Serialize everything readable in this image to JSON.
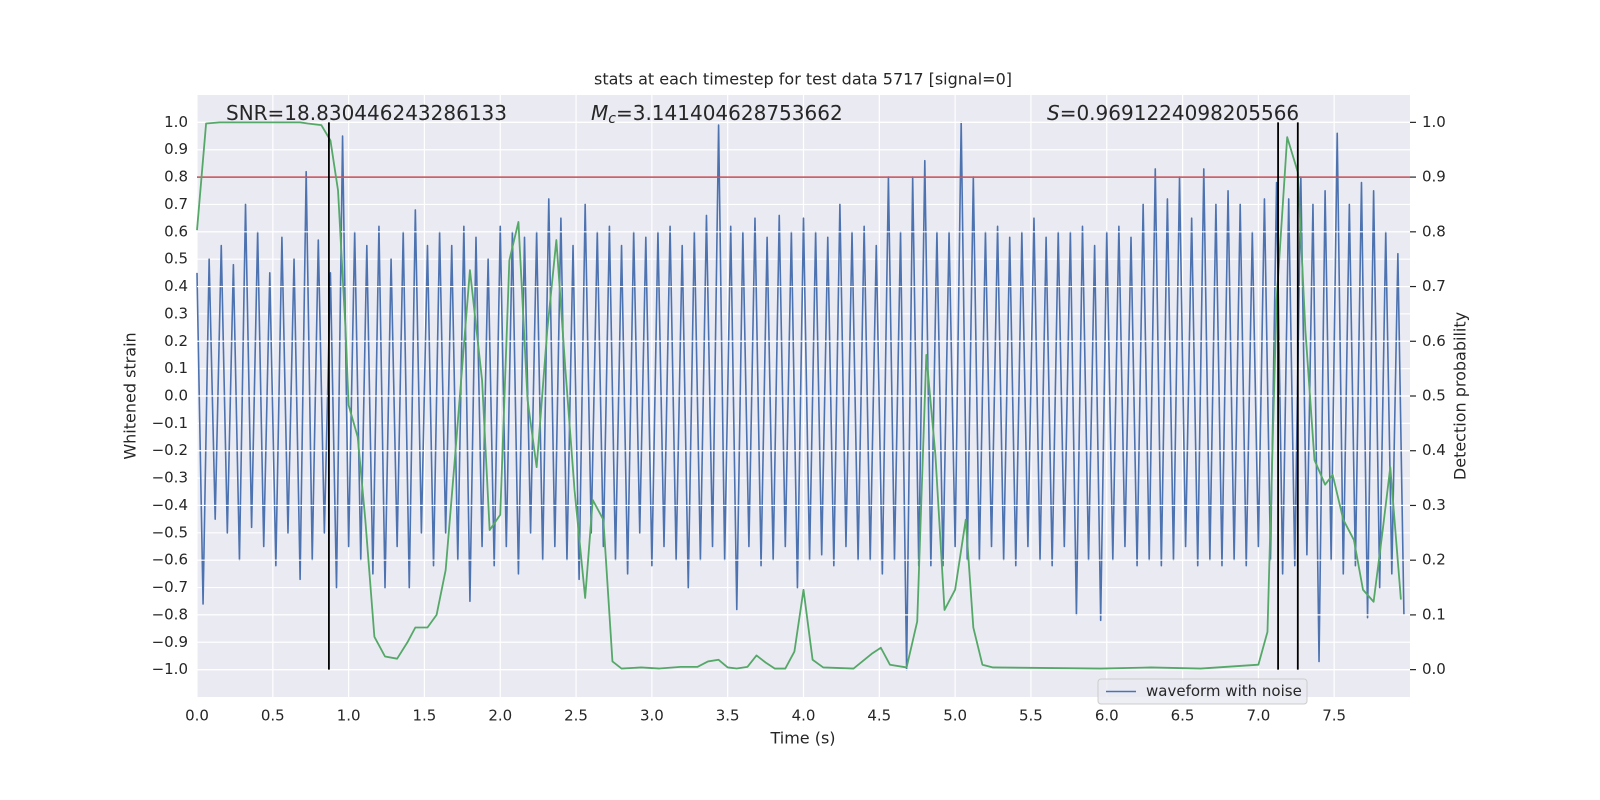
{
  "chart_data": {
    "type": "line",
    "title": "stats at each timestep for test data 5717 [signal=0]",
    "x_label": "Time (s)",
    "y_label": "Whitened strain",
    "y2_label": "Detection probability",
    "xlim": [
      0,
      8
    ],
    "ylim": [
      -1.1,
      1.1
    ],
    "y2lim": [
      -0.05,
      1.05
    ],
    "xticks": [
      {
        "value": 0,
        "label": "0.0"
      },
      0.5,
      {
        "value": 1,
        "label": "1.0"
      },
      1.5,
      {
        "value": 2,
        "label": "2.0"
      },
      2.5,
      {
        "value": 3,
        "label": "3.0"
      },
      3.5,
      {
        "value": 4,
        "label": "4.0"
      },
      4.5,
      {
        "value": 5,
        "label": "5.0"
      },
      5.5,
      {
        "value": 6,
        "label": "6.0"
      },
      6.5,
      {
        "value": 7,
        "label": "7.0"
      },
      7.5
    ],
    "yticks": [
      {
        "value": -1,
        "label": "−1.0"
      },
      {
        "value": -0.9,
        "label": "−0.9"
      },
      {
        "value": -0.8,
        "label": "−0.8"
      },
      {
        "value": -0.7,
        "label": "−0.7"
      },
      {
        "value": -0.6,
        "label": "−0.6"
      },
      {
        "value": -0.5,
        "label": "−0.5"
      },
      {
        "value": -0.4,
        "label": "−0.4"
      },
      {
        "value": -0.3,
        "label": "−0.3"
      },
      {
        "value": -0.2,
        "label": "−0.2"
      },
      {
        "value": -0.1,
        "label": "−0.1"
      },
      {
        "value": 0,
        "label": "0.0"
      },
      0.1,
      0.2,
      0.3,
      0.4,
      0.5,
      0.6,
      0.7,
      0.8,
      0.9,
      {
        "value": 1,
        "label": "1.0"
      }
    ],
    "y2ticks": [
      {
        "value": 0,
        "label": "0.0"
      },
      0.1,
      0.2,
      0.3,
      0.4,
      0.5,
      0.6,
      0.7,
      0.8,
      0.9,
      {
        "value": 1,
        "label": "1.0"
      }
    ],
    "grid": true,
    "legend": "lower right",
    "annotations": [
      {
        "text": "SNR=18.830446243286133"
      },
      {
        "symbol": "M",
        "subscript": "c",
        "text": "=3.141404628753662"
      },
      {
        "symbol": "S",
        "text": "=0.9691224098205566"
      }
    ],
    "hlines": [
      {
        "value": 0.9,
        "axis": "y2",
        "color": "#c44e52"
      }
    ],
    "vlines": [
      {
        "x": 0.87,
        "ymin": -1,
        "ymax": 1,
        "color": "#000000"
      },
      {
        "x": 7.13,
        "ymin": -1,
        "ymax": 1,
        "color": "#000000"
      },
      {
        "x": 7.26,
        "ymin": -1,
        "ymax": 1,
        "color": "#000000"
      }
    ],
    "series": [
      {
        "name": "waveform with noise",
        "color": "#4c72b0",
        "x": [
          0,
          0.04,
          0.08,
          0.12,
          0.16,
          0.2,
          0.24,
          0.28,
          0.32,
          0.36,
          0.4,
          0.44,
          0.48,
          0.52,
          0.56,
          0.6,
          0.64,
          0.68,
          0.72,
          0.76,
          0.8,
          0.84,
          0.88,
          0.92,
          0.96,
          1,
          1.04,
          1.08,
          1.12,
          1.16,
          1.2,
          1.24,
          1.28,
          1.32,
          1.36,
          1.4,
          1.44,
          1.48,
          1.52,
          1.56,
          1.6,
          1.64,
          1.68,
          1.72,
          1.76,
          1.8,
          1.84,
          1.88,
          1.92,
          1.96,
          2,
          2.04,
          2.08,
          2.12,
          2.16,
          2.2,
          2.24,
          2.28,
          2.32,
          2.36,
          2.4,
          2.44,
          2.48,
          2.52,
          2.56,
          2.6,
          2.64,
          2.68,
          2.72,
          2.76,
          2.8,
          2.84,
          2.88,
          2.92,
          2.96,
          3,
          3.04,
          3.08,
          3.12,
          3.16,
          3.2,
          3.24,
          3.28,
          3.32,
          3.36,
          3.4,
          3.44,
          3.48,
          3.52,
          3.56,
          3.6,
          3.64,
          3.68,
          3.72,
          3.76,
          3.8,
          3.84,
          3.88,
          3.92,
          3.96,
          4,
          4.04,
          4.08,
          4.12,
          4.16,
          4.2,
          4.24,
          4.28,
          4.32,
          4.36,
          4.4,
          4.44,
          4.48,
          4.52,
          4.56,
          4.6,
          4.64,
          4.68,
          4.72,
          4.76,
          4.8,
          4.84,
          4.88,
          4.92,
          4.96,
          5,
          5.04,
          5.08,
          5.12,
          5.16,
          5.2,
          5.24,
          5.28,
          5.32,
          5.36,
          5.4,
          5.44,
          5.48,
          5.52,
          5.56,
          5.6,
          5.64,
          5.68,
          5.72,
          5.76,
          5.8,
          5.84,
          5.88,
          5.92,
          5.96,
          6,
          6.04,
          6.08,
          6.12,
          6.16,
          6.2,
          6.24,
          6.28,
          6.32,
          6.36,
          6.4,
          6.44,
          6.48,
          6.52,
          6.56,
          6.6,
          6.64,
          6.68,
          6.72,
          6.76,
          6.8,
          6.84,
          6.88,
          6.92,
          6.96,
          7,
          7.04,
          7.08,
          7.12,
          7.16,
          7.2,
          7.24,
          7.28,
          7.32,
          7.36,
          7.4,
          7.44,
          7.48,
          7.52,
          7.56,
          7.6,
          7.64,
          7.68,
          7.72,
          7.76,
          7.8,
          7.84,
          7.88,
          7.92,
          7.96
        ],
        "values": [
          0.45,
          -0.76,
          0.5,
          -0.45,
          0.55,
          -0.5,
          0.48,
          -0.6,
          0.7,
          -0.48,
          0.6,
          -0.55,
          0.45,
          -0.62,
          0.58,
          -0.5,
          0.5,
          -0.67,
          0.82,
          -0.6,
          0.57,
          -0.5,
          0.45,
          -0.7,
          0.95,
          -0.55,
          0.6,
          -0.6,
          0.55,
          -0.65,
          0.62,
          -0.7,
          0.5,
          -0.55,
          0.6,
          -0.7,
          0.68,
          -0.5,
          0.55,
          -0.62,
          0.6,
          -0.5,
          0.55,
          -0.6,
          0.62,
          -0.75,
          0.58,
          -0.55,
          0.5,
          -0.62,
          0.62,
          -0.55,
          0.6,
          -0.65,
          0.58,
          -0.5,
          0.6,
          -0.6,
          0.72,
          -0.55,
          0.65,
          -0.6,
          0.55,
          -0.67,
          0.7,
          -0.5,
          0.6,
          -0.55,
          0.62,
          -0.6,
          0.55,
          -0.65,
          0.6,
          -0.5,
          0.58,
          -0.62,
          0.6,
          -0.55,
          0.62,
          -0.6,
          0.55,
          -0.7,
          0.6,
          -0.6,
          0.66,
          -0.55,
          0.99,
          -0.6,
          0.62,
          -0.78,
          0.6,
          -0.55,
          0.65,
          -0.62,
          0.58,
          -0.6,
          0.66,
          -0.55,
          0.6,
          -0.7,
          0.65,
          -0.6,
          0.6,
          -0.58,
          0.58,
          -0.62,
          0.7,
          -0.55,
          0.6,
          -0.6,
          0.62,
          -0.6,
          0.55,
          -0.65,
          0.8,
          -0.6,
          0.6,
          -1.0,
          0.8,
          -0.62,
          0.86,
          -0.62,
          0.6,
          -0.62,
          0.6,
          -0.55,
          1.0,
          -0.6,
          0.8,
          -0.6,
          0.6,
          -0.55,
          0.62,
          -0.6,
          0.58,
          -0.62,
          0.6,
          -0.55,
          0.65,
          -0.6,
          0.58,
          -0.62,
          0.6,
          -0.55,
          0.6,
          -0.8,
          0.62,
          -0.6,
          0.55,
          -0.82,
          0.6,
          -0.6,
          0.62,
          -0.55,
          0.58,
          -0.62,
          0.7,
          -0.6,
          0.83,
          -0.62,
          0.72,
          -0.6,
          0.8,
          -0.55,
          0.65,
          -0.62,
          0.83,
          -0.6,
          0.7,
          -0.62,
          0.75,
          -0.6,
          0.7,
          -0.62,
          0.6,
          -0.55,
          0.72,
          -0.6,
          0.78,
          -0.65,
          0.72,
          -0.62,
          0.8,
          -0.58,
          0.7,
          -0.97,
          0.75,
          -0.6,
          0.96,
          -0.65,
          0.7,
          -0.62,
          0.78,
          -0.81,
          0.75,
          -0.7,
          0.6,
          -0.65,
          0.52,
          -0.8
        ]
      },
      {
        "color": "#55a868",
        "axis": "y2",
        "x": [
          0,
          0.06,
          0.15,
          0.68,
          0.73,
          0.82,
          0.88,
          0.93,
          0.98,
          1,
          1.06,
          1.11,
          1.17,
          1.24,
          1.32,
          1.39,
          1.44,
          1.52,
          1.58,
          1.64,
          1.7,
          1.8,
          1.88,
          1.93,
          2,
          2.06,
          2.12,
          2.18,
          2.24,
          2.31,
          2.37,
          2.43,
          2.49,
          2.56,
          2.61,
          2.68,
          2.74,
          2.8,
          2.93,
          3.05,
          3.19,
          3.3,
          3.37,
          3.44,
          3.5,
          3.56,
          3.63,
          3.69,
          3.75,
          3.81,
          3.88,
          3.94,
          4,
          4.06,
          4.13,
          4.33,
          4.45,
          4.51,
          4.57,
          4.68,
          4.75,
          4.81,
          4.87,
          4.93,
          5,
          5.07,
          5.12,
          5.18,
          5.25,
          5.96,
          6.29,
          6.62,
          7,
          7.06,
          7.12,
          7.19,
          7.26,
          7.31,
          7.37,
          7.44,
          7.49,
          7.56,
          7.63,
          7.69,
          7.76,
          7.82,
          7.87,
          7.94
        ],
        "values": [
          0.803,
          0.998,
          1,
          1,
          0.998,
          0.995,
          0.967,
          0.876,
          0.62,
          0.483,
          0.425,
          0.274,
          0.06,
          0.024,
          0.02,
          0.051,
          0.077,
          0.077,
          0.1,
          0.182,
          0.383,
          0.73,
          0.529,
          0.255,
          0.283,
          0.748,
          0.818,
          0.493,
          0.37,
          0.62,
          0.785,
          0.547,
          0.328,
          0.131,
          0.31,
          0.274,
          0.015,
          0.002,
          0.004,
          0.002,
          0.005,
          0.005,
          0.015,
          0.018,
          0.004,
          0.002,
          0.005,
          0.026,
          0.013,
          0.002,
          0.002,
          0.033,
          0.146,
          0.018,
          0.004,
          0.002,
          0.029,
          0.04,
          0.009,
          0.004,
          0.088,
          0.575,
          0.392,
          0.109,
          0.146,
          0.274,
          0.077,
          0.009,
          0.004,
          0.002,
          0.004,
          0.002,
          0.009,
          0.069,
          0.675,
          0.973,
          0.909,
          0.62,
          0.383,
          0.338,
          0.356,
          0.274,
          0.237,
          0.146,
          0.124,
          0.255,
          0.37,
          0.128
        ]
      }
    ]
  }
}
